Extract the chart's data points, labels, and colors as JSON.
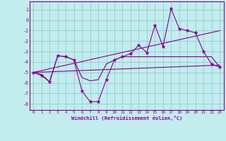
{
  "xlabel": "Windchill (Refroidissement éolien,°C)",
  "bg_color": "#c2ecee",
  "grid_color": "#96d0d4",
  "line_color": "#880088",
  "x_ticks": [
    0,
    1,
    2,
    3,
    4,
    5,
    6,
    7,
    8,
    9,
    10,
    11,
    12,
    13,
    14,
    15,
    16,
    17,
    18,
    19,
    20,
    21,
    22,
    23
  ],
  "y_ticks": [
    1,
    0,
    -1,
    -2,
    -3,
    -4,
    -5,
    -6,
    -7,
    -8
  ],
  "ylim": [
    -8.6,
    1.8
  ],
  "xlim": [
    -0.5,
    23.5
  ],
  "s1_x": [
    0,
    1,
    2,
    3,
    4,
    5,
    6,
    7,
    8,
    9,
    10,
    11,
    12,
    13,
    14,
    15,
    16,
    17,
    18,
    19,
    20,
    21,
    22,
    23
  ],
  "s1_y": [
    -5.0,
    -5.3,
    -5.9,
    -3.4,
    -3.5,
    -3.8,
    -6.8,
    -7.8,
    -7.8,
    -5.7,
    -3.8,
    -3.5,
    -3.2,
    -2.4,
    -3.1,
    -0.5,
    -2.5,
    1.1,
    -0.8,
    -1.0,
    -1.2,
    -3.0,
    -4.2,
    -4.5
  ],
  "s2_x": [
    0,
    1,
    2,
    3,
    4,
    5,
    6,
    7,
    8,
    9,
    10,
    11,
    12,
    13,
    14,
    15,
    16,
    17,
    18,
    19,
    20,
    21,
    22,
    23
  ],
  "s2_y": [
    -5.0,
    -5.2,
    -5.9,
    -3.4,
    -3.5,
    -3.8,
    -5.5,
    -5.8,
    -5.7,
    -4.2,
    -3.8,
    -3.5,
    -3.5,
    -3.5,
    -3.5,
    -3.5,
    -3.5,
    -3.5,
    -3.5,
    -3.5,
    -3.5,
    -3.5,
    -3.5,
    -4.5
  ],
  "trend1_x": [
    0,
    23
  ],
  "trend1_y": [
    -5.0,
    -1.0
  ],
  "trend2_x": [
    0,
    23
  ],
  "trend2_y": [
    -5.0,
    -4.3
  ]
}
